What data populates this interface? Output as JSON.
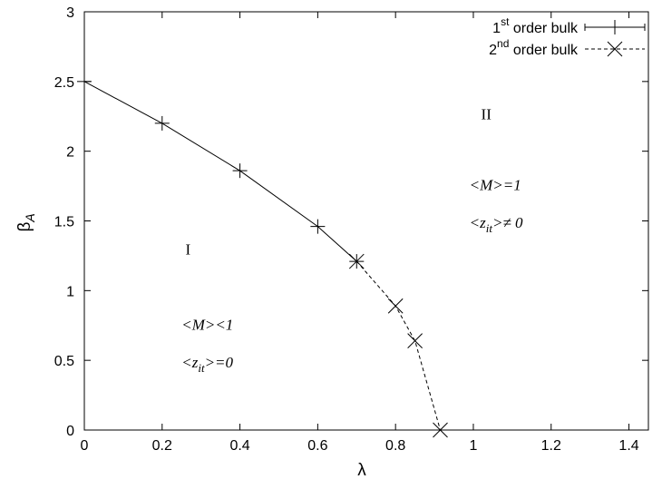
{
  "chart_data": {
    "type": "line",
    "xlabel": "λ",
    "ylabel": "β",
    "ylabel_sub": "A",
    "xlim": [
      0,
      1.45
    ],
    "ylim": [
      0,
      3
    ],
    "x_ticks": [
      "0",
      "0.2",
      "0.4",
      "0.6",
      "0.8",
      "1",
      "1.2",
      "1.4"
    ],
    "y_ticks": [
      "0",
      "0.5",
      "1",
      "1.5",
      "2",
      "2.5",
      "3"
    ],
    "grid": false,
    "legend_position": "top-right",
    "series": [
      {
        "name_base": "1",
        "name_sup": "st",
        "name_rest": " order bulk",
        "style": "solid",
        "marker": "plus",
        "x": [
          0,
          0.2,
          0.4,
          0.6,
          0.7
        ],
        "y": [
          2.5,
          2.2,
          1.86,
          1.46,
          1.21
        ]
      },
      {
        "name_base": "2",
        "name_sup": "nd",
        "name_rest": " order bulk",
        "style": "dashed",
        "marker": "cross",
        "x": [
          0.7,
          0.8,
          0.85,
          0.915
        ],
        "y": [
          1.21,
          0.89,
          0.64,
          0.0
        ]
      }
    ],
    "region_labels": [
      {
        "text": "I",
        "x": 0.26,
        "y": 1.26
      },
      {
        "text": "II",
        "x": 1.02,
        "y": 2.23
      }
    ],
    "annotations": [
      {
        "text": "<M>=1",
        "x": 0.99,
        "y": 1.72
      },
      {
        "text": "<z",
        "sub": "it",
        "rest": ">≠ 0",
        "x": 0.99,
        "y": 1.45
      },
      {
        "text": "<M><1",
        "x": 0.25,
        "y": 0.72
      },
      {
        "text": "<z",
        "sub": "it",
        "rest": ">=0",
        "x": 0.25,
        "y": 0.45
      }
    ]
  }
}
